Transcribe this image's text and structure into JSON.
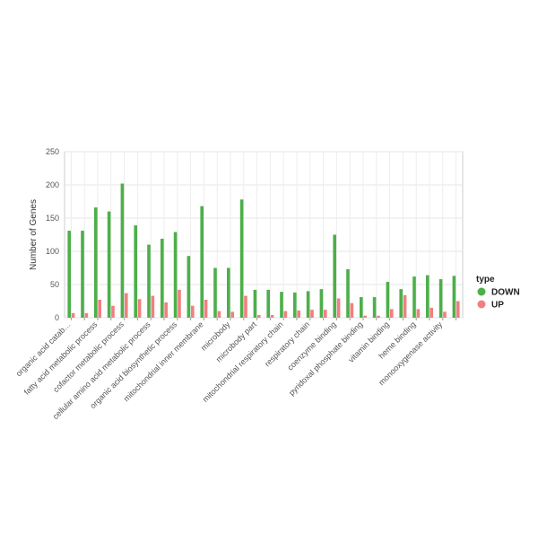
{
  "chart_data": {
    "type": "bar",
    "ylabel": "Number of Genes",
    "xlabel": "",
    "ylim": [
      0,
      250
    ],
    "yticks": [
      0,
      50,
      100,
      150,
      200,
      250
    ],
    "grid": true,
    "categories": [
      "organic acid catab…",
      "",
      "fatty acid metabolic process",
      "",
      "cofactor metabolic process",
      "",
      "cellular amino acid metabolic process",
      "",
      "organic acid biosynthetic process",
      "",
      "mitochondrial inner membrane",
      "",
      "microbody",
      "",
      "microbody part",
      "",
      "mitochondrial respiratory chain",
      "",
      "respiratory chain",
      "",
      "coenzyme binding",
      "",
      "pyridoxal phosphate binding",
      "",
      "vitamin binding",
      "",
      "heme binding",
      "",
      "monooxygenase activity",
      ""
    ],
    "series": [
      {
        "name": "DOWN",
        "color": "#4daf4a",
        "values": [
          131,
          131,
          166,
          160,
          202,
          139,
          110,
          119,
          129,
          93,
          168,
          75,
          75,
          178,
          42,
          42,
          39,
          38,
          40,
          43,
          125,
          73,
          31,
          31,
          54,
          43,
          62,
          64,
          58,
          63
        ]
      },
      {
        "name": "UP",
        "color": "#f08080",
        "values": [
          7,
          7,
          27,
          18,
          37,
          28,
          33,
          23,
          42,
          18,
          27,
          10,
          9,
          33,
          4,
          4,
          10,
          11,
          12,
          12,
          29,
          22,
          3,
          3,
          13,
          34,
          13,
          15,
          9,
          25
        ]
      }
    ],
    "legend": {
      "title": "type",
      "position": "right"
    }
  }
}
